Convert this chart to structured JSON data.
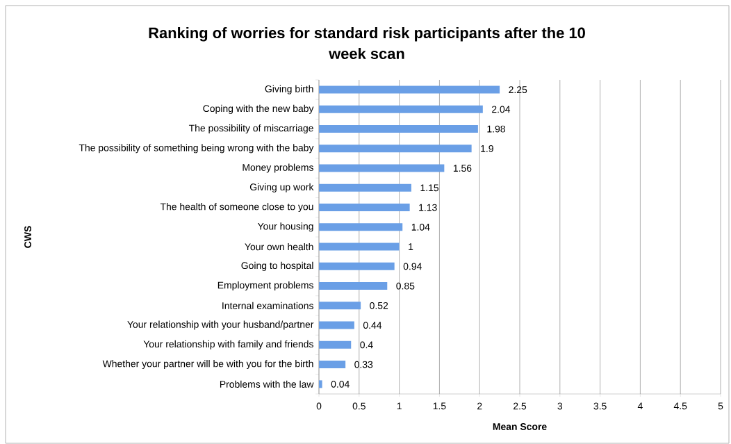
{
  "chart_data": {
    "type": "bar",
    "orientation": "horizontal",
    "title": "Ranking of worries for standard risk participants after the 10 week scan",
    "xlabel": "Mean Score",
    "ylabel": "CWS",
    "categories": [
      "Giving birth",
      "Coping with the new baby",
      "The possibility of miscarriage",
      "The possibility of something being wrong with the baby",
      "Money problems",
      "Giving up work",
      "The health of someone close to you",
      "Your housing",
      "Your own health",
      "Going to hospital",
      "Employment problems",
      "Internal examinations",
      "Your relationship with your husband/partner",
      "Your relationship with family and friends",
      "Whether your partner will be with you for the birth",
      "Problems with the law"
    ],
    "values": [
      2.25,
      2.04,
      1.98,
      1.9,
      1.56,
      1.15,
      1.13,
      1.04,
      1,
      0.94,
      0.85,
      0.52,
      0.44,
      0.4,
      0.33,
      0.04
    ],
    "color": "#6a9fe6",
    "xlim": [
      0,
      5
    ],
    "xticks": [
      0,
      0.5,
      1,
      1.5,
      2,
      2.5,
      3,
      3.5,
      4,
      4.5,
      5
    ],
    "grid": "x",
    "data_labels": true
  }
}
